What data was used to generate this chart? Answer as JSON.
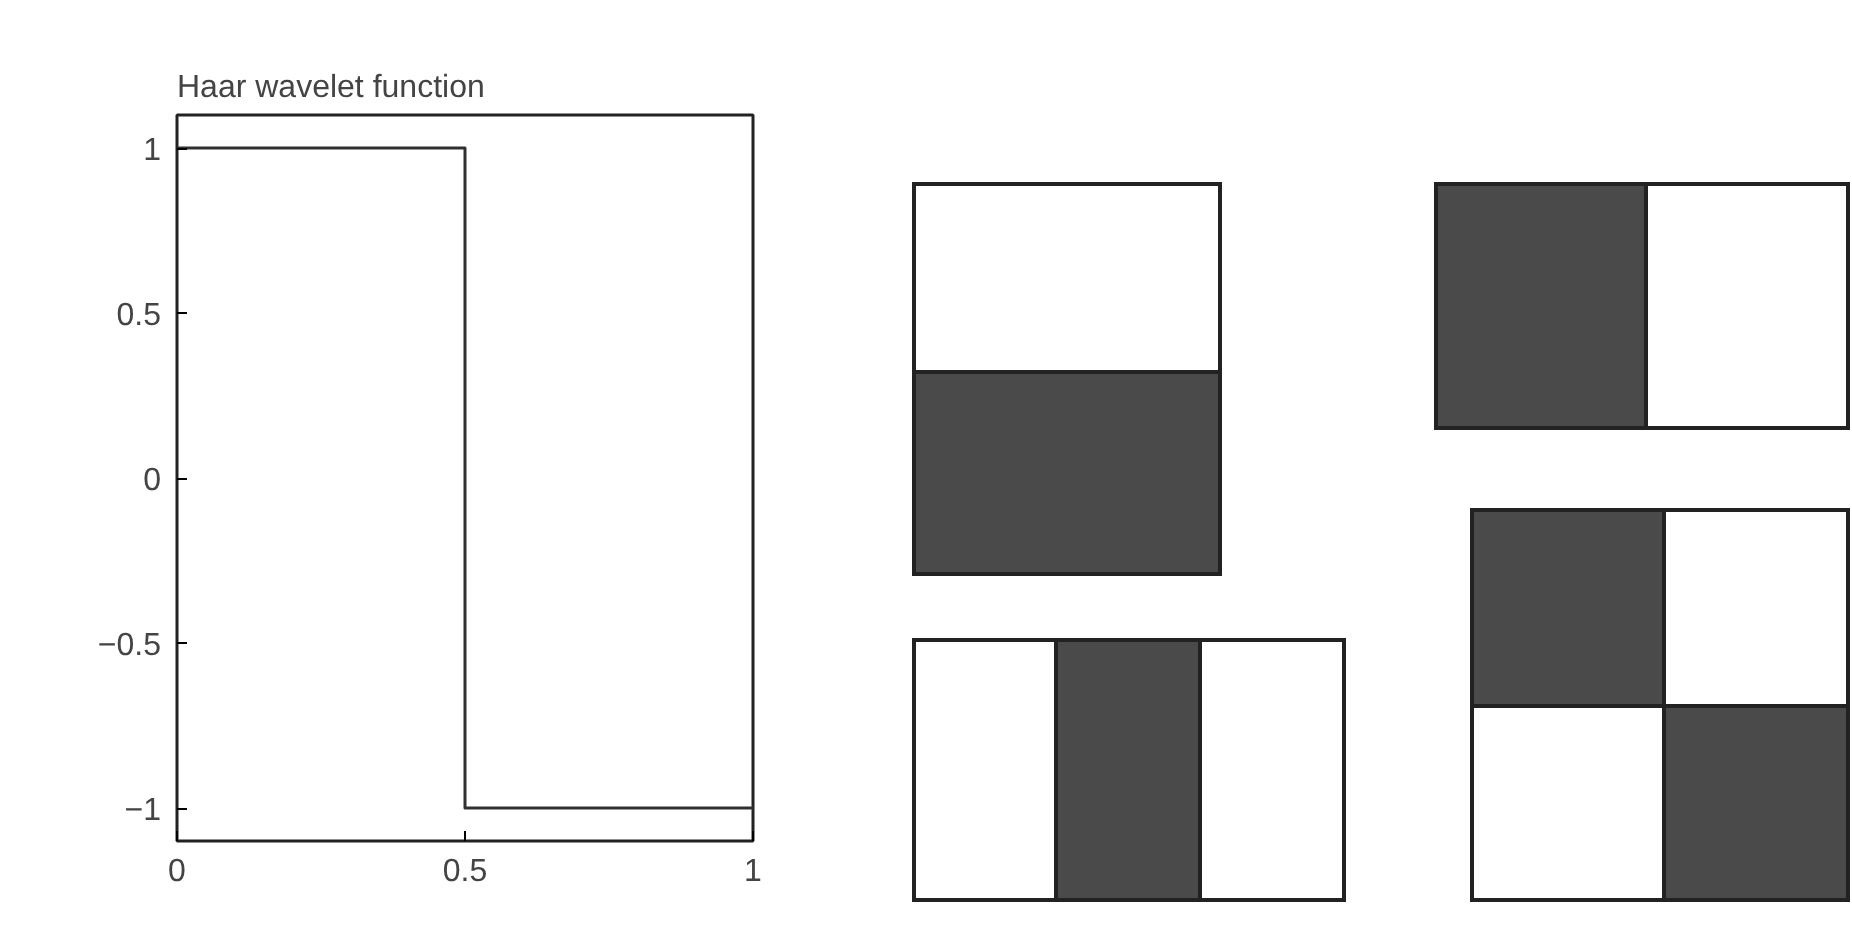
{
  "chart_data": {
    "type": "step",
    "title": "Haar wavelet function",
    "x": [
      0,
      0.5,
      1
    ],
    "series": [
      {
        "color": "#303030",
        "values": [
          1,
          -1,
          -1
        ]
      }
    ],
    "xlim": [
      0,
      1
    ],
    "ylim": [
      -1.1,
      1.1
    ],
    "xticks": [
      0,
      0.5,
      1
    ],
    "yticks": [
      {
        "value": -1,
        "label": "−1"
      },
      {
        "value": -0.5,
        "label": "−0.5"
      },
      0,
      0.5,
      1
    ],
    "grid": false
  }
}
